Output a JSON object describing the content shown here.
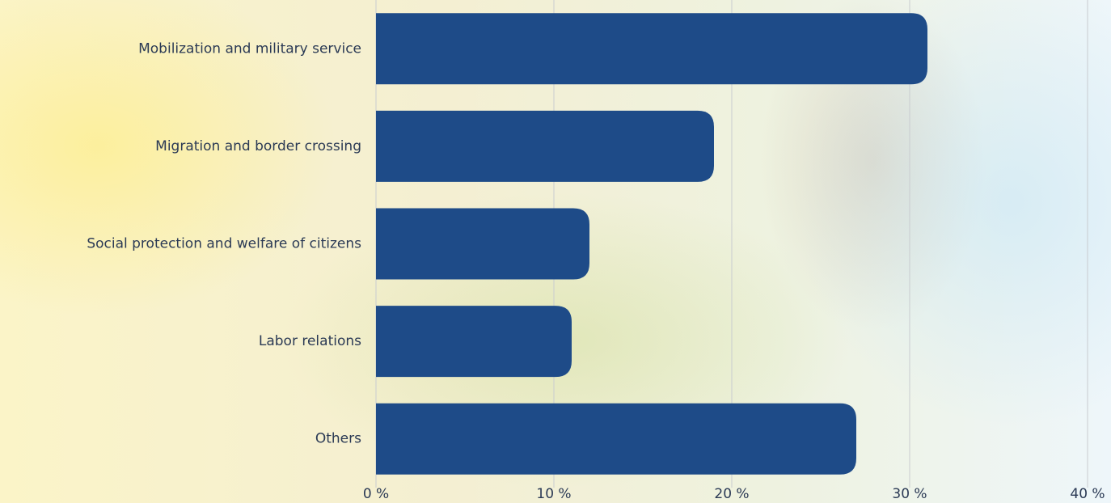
{
  "chart_data": {
    "type": "bar",
    "orientation": "horizontal",
    "categories": [
      "Mobilization and military service",
      "Migration and border crossing",
      "Social protection and welfare of citizens",
      "Labor relations",
      "Others"
    ],
    "values": [
      31,
      19,
      12,
      11,
      27
    ],
    "color": "#1e4b88",
    "xlim": [
      0,
      40
    ],
    "xticks": [
      {
        "value": 0,
        "label": "0 %"
      },
      {
        "value": 10,
        "label": "10 %"
      },
      {
        "value": 20,
        "label": "20 %"
      },
      {
        "value": 30,
        "label": "30 %"
      },
      {
        "value": 40,
        "label": "40 %"
      }
    ],
    "grid": true
  }
}
